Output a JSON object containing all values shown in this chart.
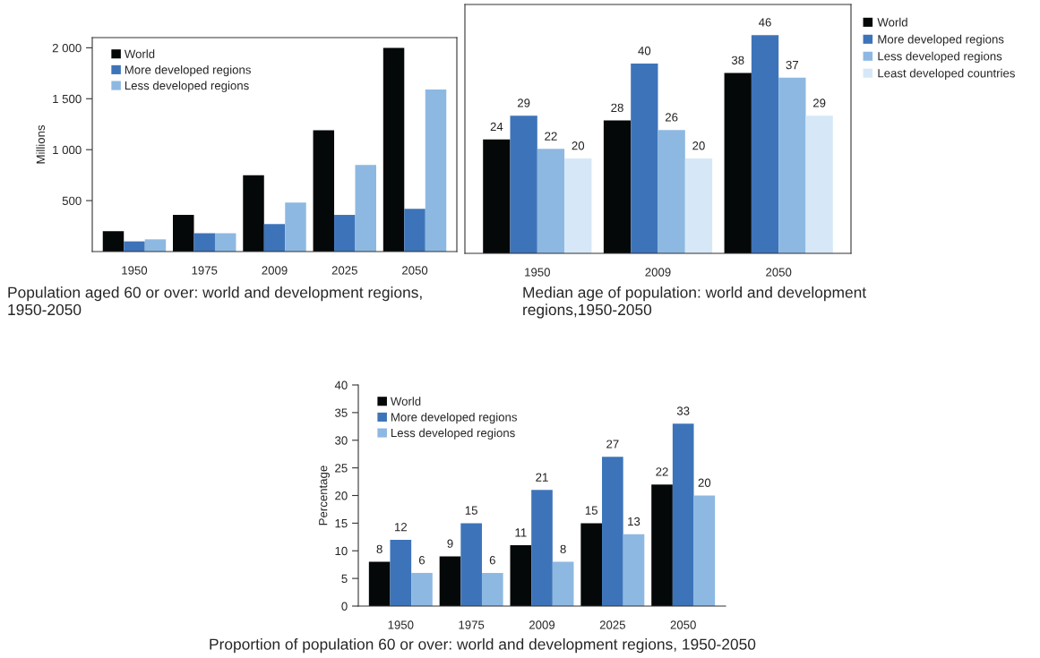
{
  "chart_data": [
    {
      "type": "bar",
      "title": "Population aged 60 or over: world and development regions, 1950-2050",
      "ylabel": "Millions",
      "categories": [
        "1950",
        "1975",
        "2009",
        "2025",
        "2050"
      ],
      "series": [
        {
          "name": "World",
          "color": "#050808",
          "values": [
            200,
            360,
            750,
            1190,
            2000
          ]
        },
        {
          "name": "More developed regions",
          "color": "#3d74b9",
          "values": [
            100,
            180,
            270,
            360,
            420
          ]
        },
        {
          "name": "Less developed regions",
          "color": "#8db8e2",
          "values": [
            120,
            180,
            480,
            850,
            1590
          ]
        }
      ],
      "ylim": [
        0,
        2100
      ],
      "yticks": [
        500,
        {
          "value": 1000,
          "label": "1 000"
        },
        {
          "value": 1500,
          "label": "1 500"
        },
        {
          "value": 2000,
          "label": "2 000"
        }
      ],
      "legend": "top left",
      "grid": false
    },
    {
      "type": "bar",
      "title": "Median age of population: world and development regions,1950-2050",
      "categories": [
        "1950",
        "2009",
        "2050"
      ],
      "series": [
        {
          "name": "World",
          "color": "#050808",
          "values": [
            24,
            28,
            38
          ]
        },
        {
          "name": "More developed regions",
          "color": "#3d74b9",
          "values": [
            29,
            40,
            46
          ]
        },
        {
          "name": "Less developed regions",
          "color": "#8db8e2",
          "values": [
            22,
            26,
            37
          ]
        },
        {
          "name": "Least developed countries",
          "color": "#d6e8f7",
          "values": [
            20,
            20,
            29
          ]
        }
      ],
      "data_labels": true,
      "tick_labels": "x",
      "legend": "right",
      "grid": false
    },
    {
      "type": "bar",
      "title": "Proportion of population 60 or over: world and development regions, 1950-2050",
      "ylabel": "Percentage",
      "categories": [
        "1950",
        "1975",
        "2009",
        "2025",
        "2050"
      ],
      "series": [
        {
          "name": "World",
          "color": "#050808",
          "values": [
            8,
            9,
            11,
            15,
            22
          ]
        },
        {
          "name": "More developed regions",
          "color": "#3d74b9",
          "values": [
            12,
            15,
            21,
            27,
            33
          ]
        },
        {
          "name": "Less developed regions",
          "color": "#8db8e2",
          "values": [
            6,
            6,
            8,
            13,
            20
          ]
        }
      ],
      "ylim": [
        0,
        40
      ],
      "yticks": [
        0,
        5,
        10,
        15,
        20,
        25,
        30,
        35,
        40
      ],
      "data_labels": true,
      "legend": "top left",
      "grid": false
    }
  ]
}
